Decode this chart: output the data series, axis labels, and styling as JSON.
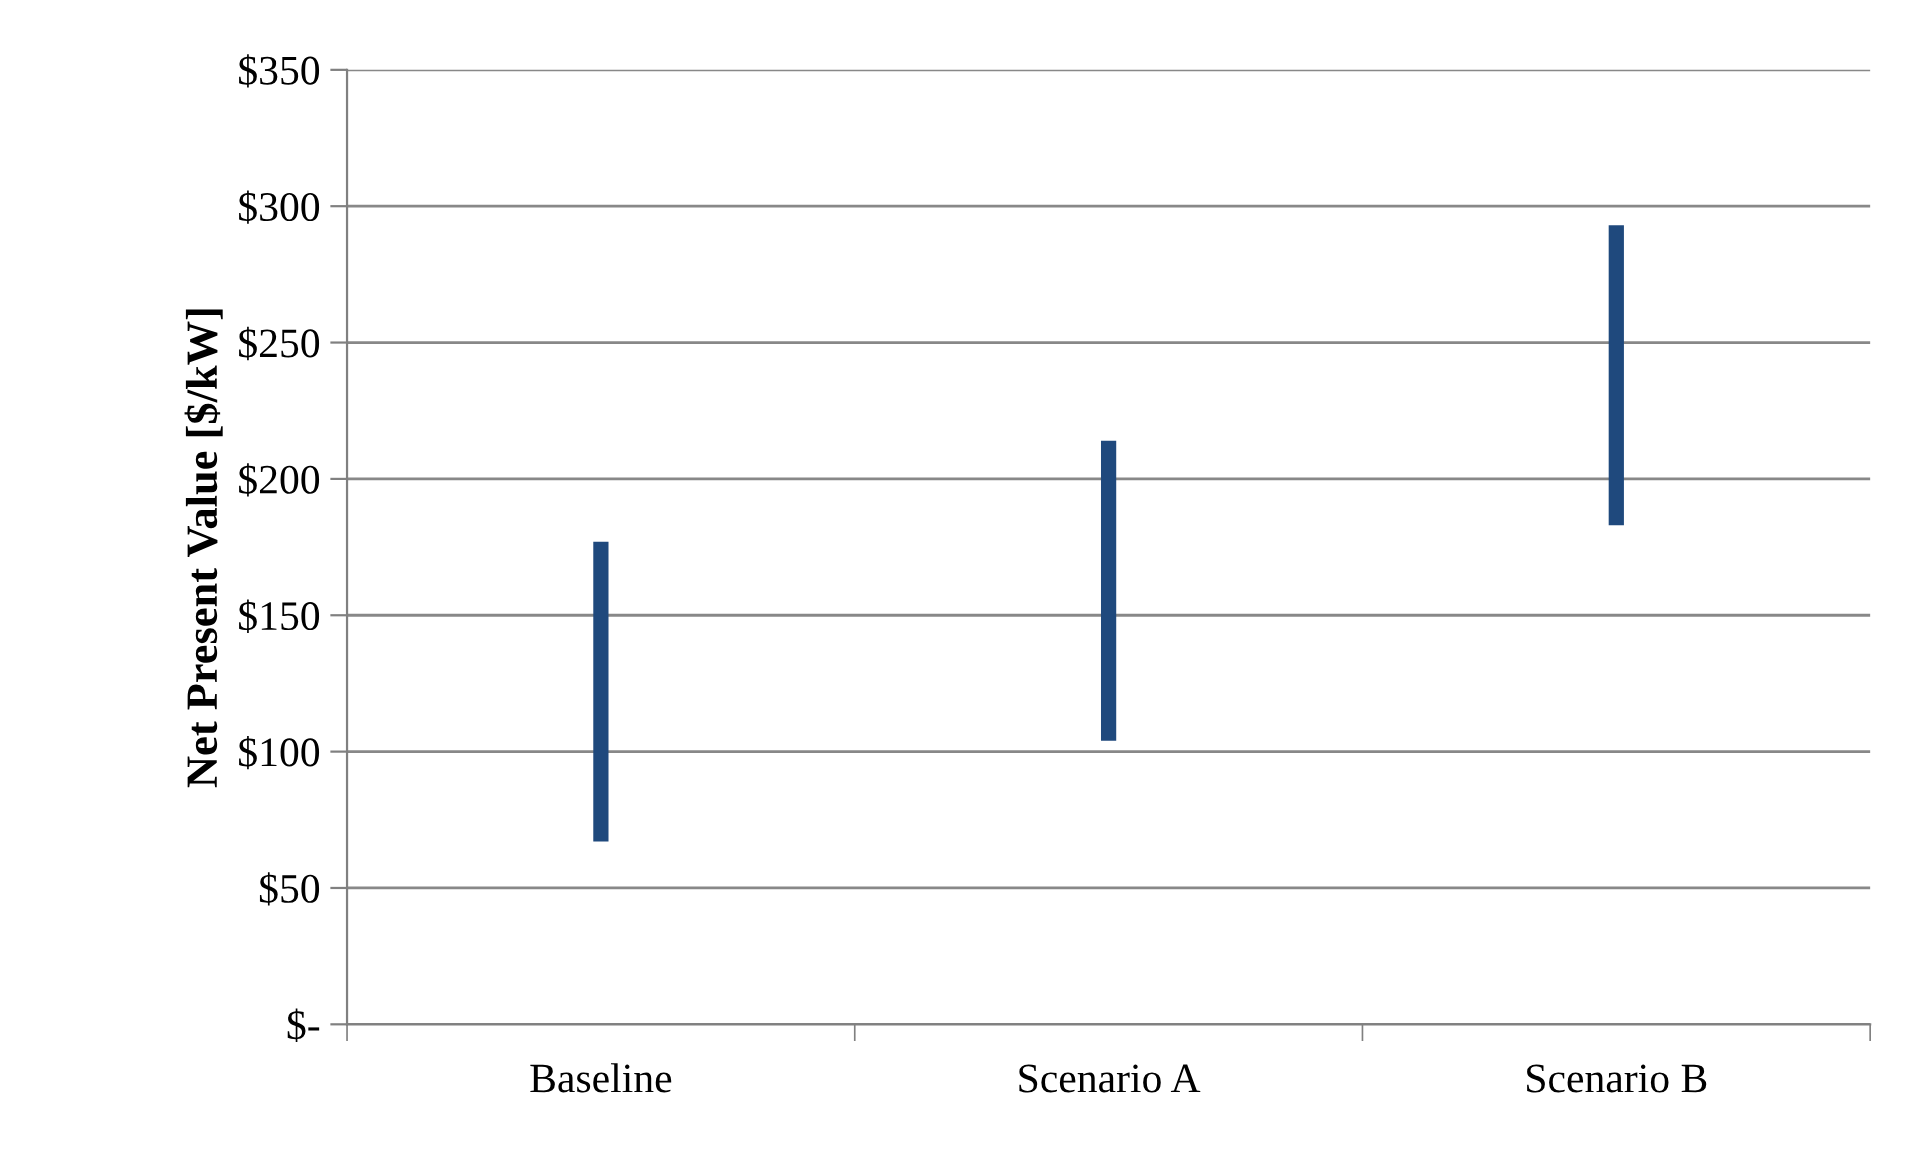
{
  "chart_data": {
    "type": "bar",
    "ylabel": "Net Present Value [$/kW]",
    "categories": [
      "Baseline",
      "Scenario A",
      "Scenario B"
    ],
    "base": [
      67,
      104,
      183
    ],
    "values": [
      110,
      110,
      110
    ],
    "color": "#1f497d",
    "ylim": [
      0,
      350
    ],
    "yticks": [
      {
        "value": 0,
        "label": "$-"
      },
      {
        "value": 50,
        "label": "$50"
      },
      {
        "value": 100,
        "label": "$100"
      },
      {
        "value": 150,
        "label": "$150"
      },
      {
        "value": 200,
        "label": "$200"
      },
      {
        "value": 250,
        "label": "$250"
      },
      {
        "value": 300,
        "label": "$300"
      },
      {
        "value": 350,
        "label": "$350"
      }
    ],
    "grid": "y"
  }
}
